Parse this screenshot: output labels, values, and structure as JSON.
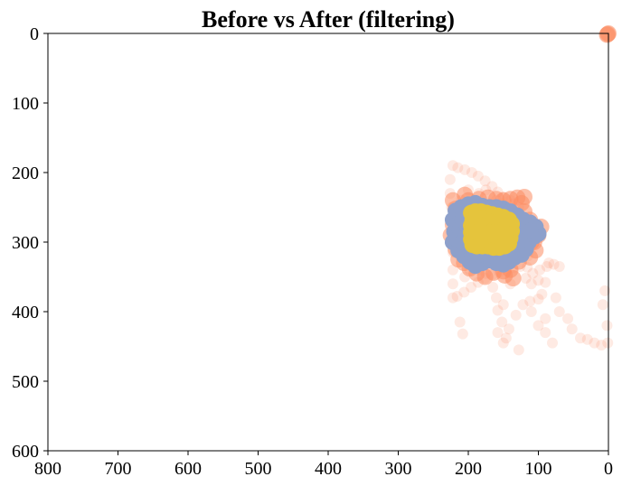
{
  "chart_data": {
    "type": "scatter",
    "title": "Before vs After (filtering)",
    "xlabel": "",
    "ylabel": "",
    "xlim": [
      800,
      0
    ],
    "ylim": [
      600,
      0
    ],
    "x_ticks": [
      "800",
      "700",
      "600",
      "500",
      "400",
      "300",
      "200",
      "100",
      "0"
    ],
    "y_ticks": [
      "0",
      "100",
      "200",
      "300",
      "400",
      "500",
      "600"
    ],
    "grid": false,
    "legend": "none",
    "colors": {
      "before": "#fc8d62",
      "filtered": "#8da0cb",
      "after": "#e5c43c"
    },
    "series": [
      {
        "key": "before",
        "alpha": 0.18,
        "points": [
          [
            222,
            190
          ],
          [
            215,
            193
          ],
          [
            205,
            196
          ],
          [
            195,
            200
          ],
          [
            186,
            205
          ],
          [
            176,
            212
          ],
          [
            166,
            220
          ],
          [
            158,
            228
          ],
          [
            150,
            235
          ],
          [
            140,
            240
          ],
          [
            226,
            210
          ],
          [
            226,
            230
          ],
          [
            224,
            250
          ],
          [
            224,
            270
          ],
          [
            224,
            295
          ],
          [
            222,
            315
          ],
          [
            222,
            340
          ],
          [
            222,
            360
          ],
          [
            222,
            380
          ],
          [
            216,
            378
          ],
          [
            206,
            372
          ],
          [
            196,
            365
          ],
          [
            186,
            358
          ],
          [
            176,
            352
          ],
          [
            166,
            347
          ],
          [
            156,
            343
          ],
          [
            146,
            340
          ],
          [
            136,
            337
          ],
          [
            126,
            335
          ],
          [
            116,
            336
          ],
          [
            212,
            415
          ],
          [
            208,
            432
          ],
          [
            165,
            365
          ],
          [
            160,
            380
          ],
          [
            158,
            398
          ],
          [
            152,
            415
          ],
          [
            158,
            430
          ],
          [
            150,
            445
          ],
          [
            146,
            438
          ],
          [
            142,
            425
          ],
          [
            132,
            405
          ],
          [
            122,
            390
          ],
          [
            112,
            385
          ],
          [
            100,
            382
          ],
          [
            110,
            400
          ],
          [
            100,
            420
          ],
          [
            90,
            430
          ],
          [
            80,
            445
          ],
          [
            90,
            410
          ],
          [
            110,
            360
          ],
          [
            100,
            355
          ],
          [
            90,
            358
          ],
          [
            95,
            375
          ],
          [
            70,
            400
          ],
          [
            58,
            410
          ],
          [
            52,
            425
          ],
          [
            40,
            438
          ],
          [
            30,
            440
          ],
          [
            20,
            445
          ],
          [
            10,
            448
          ],
          [
            5,
            370
          ],
          [
            2,
            420
          ],
          [
            1,
            445
          ],
          [
            8,
            390
          ],
          [
            75,
            380
          ],
          [
            85,
            330
          ],
          [
            128,
            455
          ],
          [
            150,
            390
          ],
          [
            140,
            360
          ],
          [
            175,
            225
          ],
          [
            185,
            230
          ],
          [
            200,
            225
          ],
          [
            210,
            240
          ],
          [
            218,
            255
          ],
          [
            120,
            300
          ],
          [
            125,
            280
          ],
          [
            128,
            250
          ],
          [
            115,
            320
          ],
          [
            135,
            245
          ],
          [
            145,
            250
          ],
          [
            160,
            240
          ],
          [
            170,
            245
          ],
          [
            190,
            250
          ],
          [
            195,
            330
          ],
          [
            185,
            340
          ],
          [
            175,
            345
          ],
          [
            165,
            330
          ],
          [
            150,
            335
          ],
          [
            140,
            330
          ],
          [
            130,
            320
          ],
          [
            118,
            352
          ],
          [
            108,
            345
          ],
          [
            98,
            340
          ],
          [
            88,
            335
          ],
          [
            78,
            332
          ],
          [
            70,
            335
          ],
          [
            205,
            350
          ],
          [
            198,
            340
          ],
          [
            215,
            300
          ],
          [
            212,
            320
          ]
        ]
      },
      {
        "key": "before",
        "alpha": 0.55,
        "points": [
          [
            222,
            240
          ],
          [
            218,
            252
          ],
          [
            215,
            262
          ],
          [
            222,
            275
          ],
          [
            220,
            298
          ],
          [
            218,
            310
          ],
          [
            214,
            325
          ],
          [
            206,
            330
          ],
          [
            200,
            240
          ],
          [
            185,
            238
          ],
          [
            172,
            236
          ],
          [
            160,
            238
          ],
          [
            150,
            240
          ],
          [
            140,
            238
          ],
          [
            130,
            236
          ],
          [
            124,
            244
          ],
          [
            120,
            256
          ],
          [
            112,
            268
          ],
          [
            108,
            282
          ],
          [
            106,
            300
          ],
          [
            104,
            312
          ],
          [
            112,
            322
          ],
          [
            128,
            328
          ],
          [
            140,
            340
          ],
          [
            150,
            342
          ],
          [
            164,
            344
          ],
          [
            176,
            350
          ],
          [
            188,
            345
          ],
          [
            198,
            338
          ],
          [
            148,
            348
          ],
          [
            136,
            352
          ],
          [
            110,
            300
          ],
          [
            100,
            290
          ],
          [
            96,
            278
          ],
          [
            120,
            235
          ],
          [
            225,
            290
          ],
          [
            205,
            232
          ],
          [
            0,
            0
          ],
          [
            2,
            2
          ],
          [
            1,
            1
          ]
        ]
      },
      {
        "key": "filtered",
        "alpha": 1.0,
        "points": [
          [
            222,
            268
          ],
          [
            220,
            285
          ],
          [
            222,
            300
          ],
          [
            218,
            255
          ],
          [
            210,
            250
          ],
          [
            200,
            246
          ],
          [
            190,
            244
          ],
          [
            180,
            248
          ],
          [
            170,
            250
          ],
          [
            160,
            250
          ],
          [
            150,
            252
          ],
          [
            140,
            256
          ],
          [
            130,
            262
          ],
          [
            122,
            268
          ],
          [
            112,
            272
          ],
          [
            104,
            278
          ],
          [
            100,
            288
          ],
          [
            106,
            292
          ],
          [
            114,
            300
          ],
          [
            118,
            310
          ],
          [
            124,
            318
          ],
          [
            134,
            322
          ],
          [
            142,
            328
          ],
          [
            150,
            332
          ],
          [
            160,
            330
          ],
          [
            170,
            326
          ],
          [
            180,
            330
          ],
          [
            190,
            334
          ],
          [
            198,
            328
          ],
          [
            206,
            320
          ],
          [
            214,
            312
          ],
          [
            216,
            296
          ],
          [
            212,
            282
          ],
          [
            208,
            268
          ],
          [
            198,
            262
          ],
          [
            188,
            270
          ],
          [
            178,
            280
          ],
          [
            166,
            290
          ],
          [
            156,
            300
          ],
          [
            146,
            312
          ],
          [
            136,
            305
          ],
          [
            130,
            290
          ],
          [
            128,
            278
          ],
          [
            150,
            270
          ],
          [
            164,
            260
          ],
          [
            176,
            262
          ],
          [
            186,
            290
          ],
          [
            196,
            300
          ],
          [
            204,
            290
          ],
          [
            194,
            315
          ],
          [
            184,
            318
          ],
          [
            172,
            316
          ],
          [
            160,
            318
          ],
          [
            148,
            322
          ],
          [
            138,
            318
          ],
          [
            132,
            300
          ],
          [
            120,
            290
          ],
          [
            112,
            284
          ],
          [
            200,
            278
          ],
          [
            208,
            300
          ]
        ]
      },
      {
        "key": "after",
        "alpha": 1.0,
        "points": [
          [
            196,
            258
          ],
          [
            190,
            256
          ],
          [
            182,
            256
          ],
          [
            174,
            258
          ],
          [
            166,
            260
          ],
          [
            158,
            262
          ],
          [
            150,
            264
          ],
          [
            142,
            268
          ],
          [
            138,
            274
          ],
          [
            138,
            284
          ],
          [
            140,
            294
          ],
          [
            142,
            302
          ],
          [
            148,
            306
          ],
          [
            156,
            308
          ],
          [
            164,
            308
          ],
          [
            172,
            306
          ],
          [
            180,
            306
          ],
          [
            188,
            306
          ],
          [
            194,
            304
          ],
          [
            196,
            296
          ],
          [
            196,
            286
          ],
          [
            196,
            276
          ],
          [
            194,
            268
          ],
          [
            186,
            266
          ],
          [
            178,
            266
          ],
          [
            170,
            270
          ],
          [
            162,
            272
          ],
          [
            154,
            274
          ],
          [
            146,
            278
          ],
          [
            146,
            288
          ],
          [
            150,
            296
          ],
          [
            158,
            298
          ],
          [
            166,
            298
          ],
          [
            174,
            298
          ],
          [
            182,
            298
          ],
          [
            188,
            294
          ],
          [
            190,
            286
          ],
          [
            188,
            278
          ],
          [
            180,
            276
          ],
          [
            172,
            280
          ],
          [
            164,
            282
          ],
          [
            156,
            284
          ],
          [
            156,
            292
          ],
          [
            164,
            290
          ],
          [
            172,
            290
          ],
          [
            180,
            290
          ],
          [
            184,
            284
          ],
          [
            176,
            284
          ],
          [
            168,
            286
          ],
          [
            162,
            286
          ]
        ]
      }
    ]
  }
}
